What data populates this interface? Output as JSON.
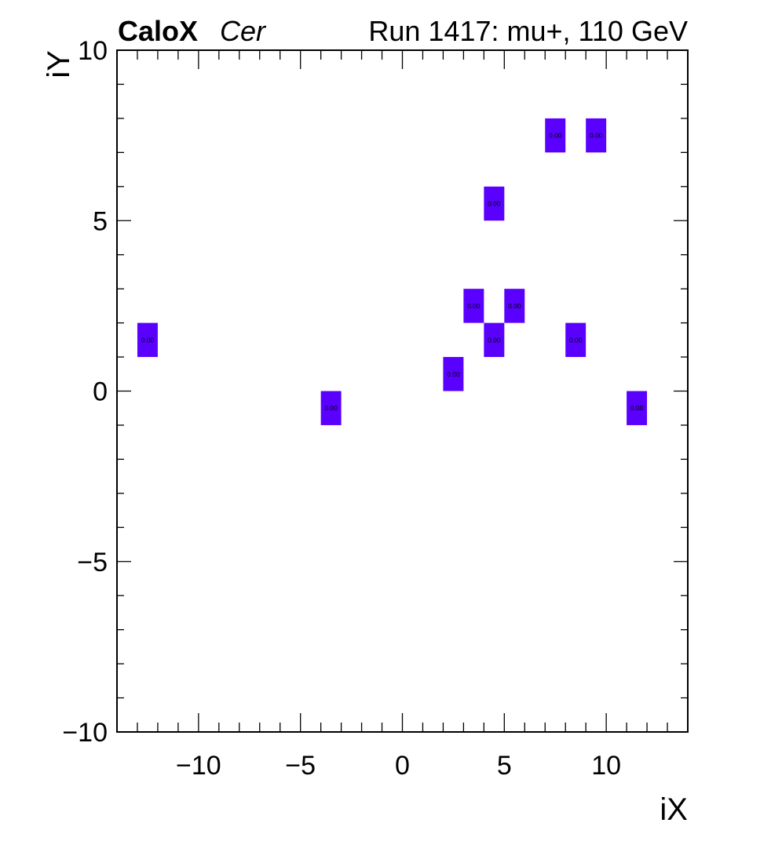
{
  "header": {
    "brand": "CaloX",
    "channel": "Cer",
    "run_info": "Run 1417: mu+, 110 GeV"
  },
  "chart_data": {
    "type": "heatmap",
    "xlabel": "iX",
    "ylabel": "iY",
    "xlim": [
      -14,
      14
    ],
    "ylim": [
      -10,
      10
    ],
    "x_ticks": [
      -10,
      -5,
      0,
      5,
      10
    ],
    "y_ticks": [
      -10,
      -5,
      0,
      5,
      10
    ],
    "x_tick_labels": [
      "−10",
      "−5",
      "0",
      "5",
      "10"
    ],
    "y_tick_labels": [
      "−10",
      "−5",
      "0",
      "5",
      "10"
    ],
    "grid": false,
    "cell_color": "#5a00ff",
    "cells": [
      {
        "x0": -13.0,
        "x1": -12.0,
        "y0": 1.0,
        "y1": 2.0,
        "label": "0.00"
      },
      {
        "x0": -4.0,
        "x1": -3.0,
        "y0": -1.0,
        "y1": 0.0,
        "label": "0.00"
      },
      {
        "x0": 2.0,
        "x1": 3.0,
        "y0": 0.0,
        "y1": 1.0,
        "label": "0.00"
      },
      {
        "x0": 3.0,
        "x1": 4.0,
        "y0": 2.0,
        "y1": 3.0,
        "label": "0.00"
      },
      {
        "x0": 4.0,
        "x1": 5.0,
        "y0": 1.0,
        "y1": 2.0,
        "label": "0.00"
      },
      {
        "x0": 5.0,
        "x1": 6.0,
        "y0": 2.0,
        "y1": 3.0,
        "label": "0.00"
      },
      {
        "x0": 4.0,
        "x1": 5.0,
        "y0": 5.0,
        "y1": 6.0,
        "label": "0.00"
      },
      {
        "x0": 7.0,
        "x1": 8.0,
        "y0": 7.0,
        "y1": 8.0,
        "label": "0.00"
      },
      {
        "x0": 9.0,
        "x1": 10.0,
        "y0": 7.0,
        "y1": 8.0,
        "label": "0.00"
      },
      {
        "x0": 8.0,
        "x1": 9.0,
        "y0": 1.0,
        "y1": 2.0,
        "label": "0.00"
      },
      {
        "x0": 11.0,
        "x1": 12.0,
        "y0": -1.0,
        "y1": 0.0,
        "label": "0.00"
      }
    ]
  }
}
